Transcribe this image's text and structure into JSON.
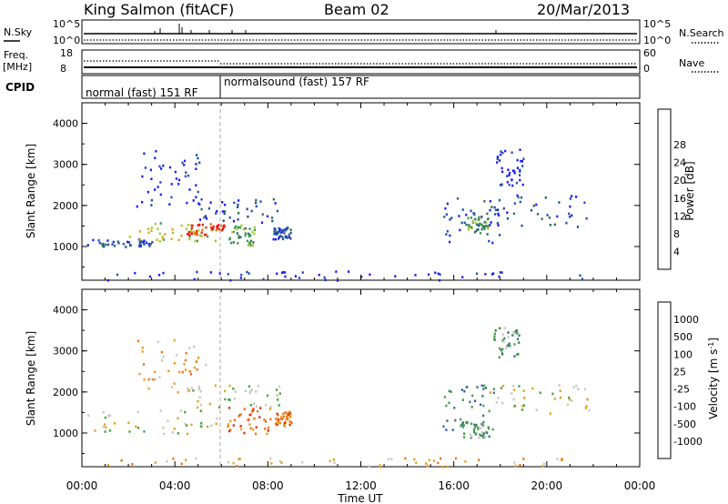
{
  "header": {
    "station": "King Salmon (fitACF)",
    "beam": "Beam 02",
    "date": "20/Mar/2013"
  },
  "status_panels": {
    "nsky_label": "N.Sky",
    "nsky_ticks": [
      "10^5",
      "10^0"
    ],
    "nsearch_label": "N.Search",
    "nsearch_ticks": [
      "10^5",
      "10^0"
    ],
    "freq_label": "Freq.",
    "freq_unit": "[MHz]",
    "freq_ticks": [
      "18",
      "8"
    ],
    "nave_label": "Nave",
    "nave_ticks": [
      "60",
      "0"
    ],
    "cpid_label": "CPID",
    "cpid_segments": [
      "normal (fast) 151 RF",
      "normalsound (fast) 157 RF"
    ]
  },
  "colors": {
    "power_scale": [
      "#1a1aff",
      "#1f4fa8",
      "#2e6e5e",
      "#3e9a4e",
      "#a8c830",
      "#e8a020",
      "#ef7010",
      "#e03010",
      "#ff0000"
    ],
    "velocity_scale": [
      "#2a2ab0",
      "#2f5fb0",
      "#3a7a70",
      "#48a048",
      "#c8c8c8",
      "#e8a020",
      "#ef7010",
      "#e03010",
      "#ff0000"
    ]
  },
  "chart_data": [
    {
      "type": "heatmap",
      "title": "Power",
      "xlabel": "",
      "ylabel": "Slant Range [km]",
      "xlim": [
        0,
        24
      ],
      "ylim": [
        180,
        4500
      ],
      "x_ticks": [
        "00:00",
        "04:00",
        "08:00",
        "12:00",
        "16:00",
        "20:00",
        "00:00"
      ],
      "y_ticks": [
        "1000",
        "2000",
        "3000",
        "4000"
      ],
      "colorbar_label": "Power [dB]",
      "colorbar_ticks": [
        "4",
        "8",
        "12",
        "16",
        "20",
        "24",
        "28"
      ],
      "scatter_regions": [
        {
          "t0": 0.2,
          "t1": 3.0,
          "r0": 1000,
          "r1": 1200,
          "level": 1
        },
        {
          "t0": 2.0,
          "t1": 5.8,
          "r0": 1150,
          "r1": 1600,
          "level": 4
        },
        {
          "t0": 4.5,
          "t1": 6.1,
          "r0": 1300,
          "r1": 1600,
          "level": 7
        },
        {
          "t0": 5.0,
          "t1": 8.5,
          "r0": 1600,
          "r1": 2200,
          "level": 1
        },
        {
          "t0": 6.3,
          "t1": 7.4,
          "r0": 1050,
          "r1": 1550,
          "level": 3
        },
        {
          "t0": 2.3,
          "t1": 5.2,
          "r0": 2000,
          "r1": 3400,
          "level": 0
        },
        {
          "t0": 8.2,
          "t1": 9.0,
          "r0": 1200,
          "r1": 1500,
          "level": 1
        },
        {
          "t0": 15.5,
          "t1": 18.0,
          "r0": 1100,
          "r1": 2200,
          "level": 1
        },
        {
          "t0": 16.5,
          "t1": 17.5,
          "r0": 1350,
          "r1": 1750,
          "level": 3
        },
        {
          "t0": 17.5,
          "t1": 21.8,
          "r0": 1500,
          "r1": 2300,
          "level": 1
        },
        {
          "t0": 17.8,
          "t1": 19.0,
          "r0": 2500,
          "r1": 3400,
          "level": 0
        },
        {
          "t0": 1.0,
          "t1": 21.5,
          "r0": 200,
          "r1": 420,
          "level": 0
        }
      ]
    },
    {
      "type": "heatmap",
      "title": "Velocity",
      "xlabel": "Time UT",
      "ylabel": "Slant Range [km]",
      "xlim": [
        0,
        24
      ],
      "ylim": [
        180,
        4500
      ],
      "x_ticks": [
        "00:00",
        "04:00",
        "08:00",
        "12:00",
        "16:00",
        "20:00",
        "00:00"
      ],
      "y_ticks": [
        "1000",
        "2000",
        "3000",
        "4000"
      ],
      "colorbar_label": "Velocity [m s^-1]",
      "colorbar_ticks": [
        "1000",
        "500",
        "100",
        "25",
        "-25",
        "-100",
        "-500",
        "-1000"
      ],
      "scatter_regions": [
        {
          "t0": 0.2,
          "t1": 5.8,
          "r0": 1000,
          "r1": 1600,
          "level": 4
        },
        {
          "t0": 4.5,
          "t1": 8.6,
          "r0": 1650,
          "r1": 2200,
          "level": 4
        },
        {
          "t0": 6.2,
          "t1": 8.2,
          "r0": 1000,
          "r1": 1650,
          "level": 6
        },
        {
          "t0": 8.3,
          "t1": 9.0,
          "r0": 1200,
          "r1": 1550,
          "level": 6
        },
        {
          "t0": 2.3,
          "t1": 5.3,
          "r0": 2000,
          "r1": 3300,
          "level": 5
        },
        {
          "t0": 15.5,
          "t1": 17.8,
          "r0": 1100,
          "r1": 2200,
          "level": 2
        },
        {
          "t0": 16.3,
          "t1": 17.5,
          "r0": 900,
          "r1": 1300,
          "level": 3
        },
        {
          "t0": 17.5,
          "t1": 21.8,
          "r0": 1500,
          "r1": 2200,
          "level": 4
        },
        {
          "t0": 17.6,
          "t1": 18.8,
          "r0": 2800,
          "r1": 3600,
          "level": 3
        },
        {
          "t0": 1.0,
          "t1": 21.5,
          "r0": 200,
          "r1": 420,
          "level": 5
        }
      ]
    }
  ]
}
